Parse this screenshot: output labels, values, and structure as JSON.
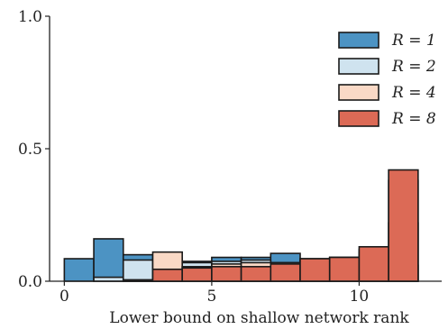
{
  "chart_data": {
    "type": "bar",
    "xlabel": "Lower bound on shallow network rank",
    "ylabel": "",
    "xlim": [
      -0.5,
      12.8
    ],
    "ylim": [
      0,
      1.0
    ],
    "x_ticks": [
      {
        "value": 0,
        "label": "0"
      },
      {
        "value": 5,
        "label": "5"
      },
      {
        "value": 10,
        "label": "10"
      }
    ],
    "y_ticks": [
      {
        "value": 0.0,
        "label": "0.0"
      },
      {
        "value": 0.5,
        "label": "0.5"
      },
      {
        "value": 1.0,
        "label": "1.0"
      }
    ],
    "bin_edges": [
      0,
      1,
      2,
      3,
      4,
      5,
      6,
      7,
      8,
      9,
      10,
      11,
      12
    ],
    "legend_position": "upper-right",
    "series": [
      {
        "name": "R = 1",
        "color": "#4c93c3",
        "values": [
          0.085,
          0.16,
          0.1,
          0.07,
          0.075,
          0.09,
          0.09,
          0.105,
          0.08,
          0.09,
          0.1,
          0.06
        ]
      },
      {
        "name": "R = 2",
        "color": "#cfe3ef",
        "values": [
          0.0,
          0.015,
          0.08,
          0.085,
          0.07,
          0.075,
          0.08,
          0.07,
          0.08,
          0.08,
          0.11,
          0.22
        ]
      },
      {
        "name": "R = 4",
        "color": "#fad9c6",
        "values": [
          0.0,
          0.0,
          0.005,
          0.11,
          0.055,
          0.065,
          0.07,
          0.07,
          0.085,
          0.09,
          0.12,
          0.38
        ]
      },
      {
        "name": "R = 8",
        "color": "#dc6a56",
        "values": [
          0.0,
          0.0,
          0.005,
          0.045,
          0.05,
          0.055,
          0.055,
          0.065,
          0.085,
          0.09,
          0.13,
          0.42
        ]
      }
    ]
  }
}
